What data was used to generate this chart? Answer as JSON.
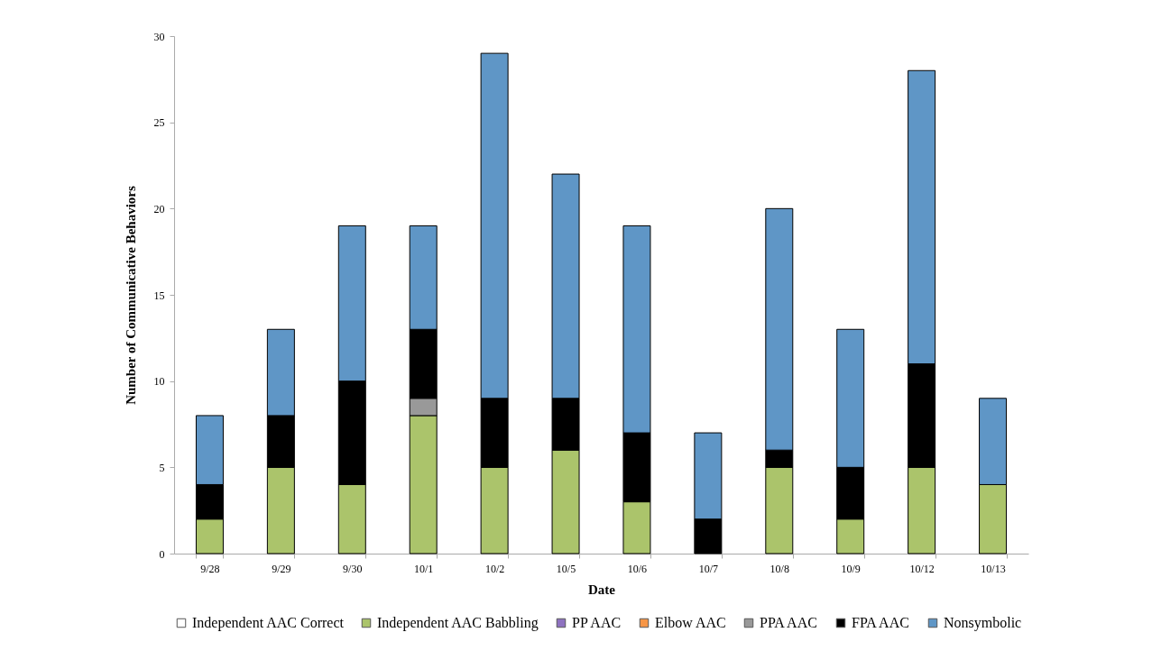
{
  "chart_data": {
    "type": "bar",
    "stacked": true,
    "xlabel": "Date",
    "ylabel": "Number of Communicative Behaviors",
    "categories": [
      "9/28",
      "9/29",
      "9/30",
      "10/1",
      "10/2",
      "10/5",
      "10/6",
      "10/7",
      "10/8",
      "10/9",
      "10/12",
      "10/13"
    ],
    "series": [
      {
        "name": "Independent AAC Correct",
        "color": "#ffffff",
        "values": [
          0,
          0,
          0,
          0,
          0,
          0,
          0,
          0,
          0,
          0,
          0,
          0
        ]
      },
      {
        "name": "Independent AAC Babbling",
        "color": "#abc46b",
        "values": [
          2,
          5,
          4,
          8,
          5,
          6,
          3,
          0,
          5,
          2,
          5,
          4
        ]
      },
      {
        "name": "PP AAC",
        "color": "#8e72c0",
        "values": [
          0,
          0,
          0,
          0,
          0,
          0,
          0,
          0,
          0,
          0,
          0,
          0
        ]
      },
      {
        "name": "Elbow AAC",
        "color": "#f79646",
        "values": [
          0,
          0,
          0,
          0,
          0,
          0,
          0,
          0,
          0,
          0,
          0,
          0
        ]
      },
      {
        "name": "PPA AAC",
        "color": "#999999",
        "values": [
          0,
          0,
          0,
          1,
          0,
          0,
          0,
          0,
          0,
          0,
          0,
          0
        ]
      },
      {
        "name": "FPA AAC",
        "color": "#000000",
        "values": [
          2,
          3,
          6,
          4,
          4,
          3,
          4,
          2,
          1,
          3,
          6,
          0
        ]
      },
      {
        "name": "Nonsymbolic",
        "color": "#5f96c6",
        "values": [
          4,
          5,
          9,
          6,
          20,
          13,
          12,
          5,
          14,
          8,
          17,
          5
        ]
      }
    ],
    "ylim": [
      0,
      30
    ],
    "yticks": [
      0,
      5,
      10,
      15,
      20,
      25,
      30
    ],
    "grid": false,
    "legend": "bottom"
  }
}
